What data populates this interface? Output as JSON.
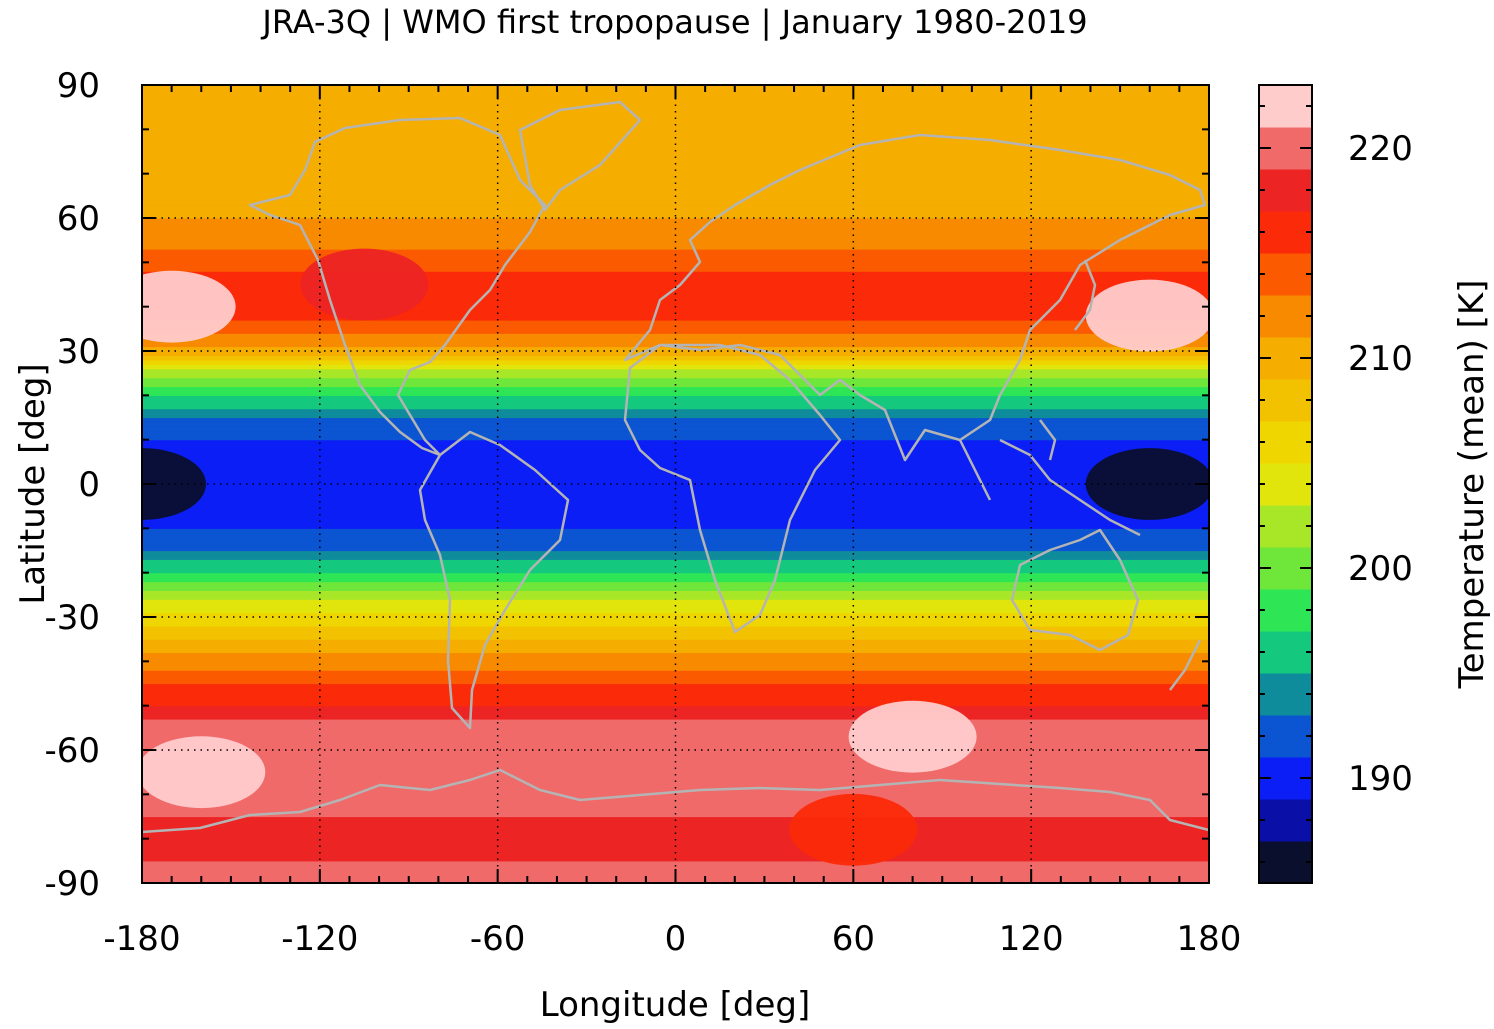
{
  "chart_data": {
    "type": "heatmap",
    "title": "JRA-3Q | WMO first tropopause | January 1980-2019",
    "xlabel": "Longitude [deg]",
    "ylabel": "Latitude [deg]",
    "colorbar_label": "Temperature (mean) [K]",
    "xlim": [
      -180,
      180
    ],
    "ylim": [
      -90,
      90
    ],
    "xticks": [
      -180,
      -120,
      -60,
      0,
      60,
      120,
      180
    ],
    "xtick_labels": [
      "-180",
      "-120",
      "-60",
      "0",
      "60",
      "120",
      "180"
    ],
    "yticks": [
      90,
      60,
      30,
      0,
      -30,
      -60,
      -90
    ],
    "ytick_labels": [
      "90",
      "60",
      "30",
      "0",
      "-30",
      "-60",
      "-90"
    ],
    "grid": true,
    "colorbar": {
      "range": [
        185,
        223
      ],
      "ticks": [
        190,
        200,
        210,
        220
      ],
      "tick_labels": [
        "190",
        "200",
        "210",
        "220"
      ],
      "levels": [
        {
          "from": 185,
          "to": 187,
          "color": "#0b0f2e"
        },
        {
          "from": 187,
          "to": 189,
          "color": "#0a0fa8"
        },
        {
          "from": 189,
          "to": 191,
          "color": "#0a1ef5"
        },
        {
          "from": 191,
          "to": 193,
          "color": "#0b55d2"
        },
        {
          "from": 193,
          "to": 195,
          "color": "#0f8c9c"
        },
        {
          "from": 195,
          "to": 197,
          "color": "#14c97e"
        },
        {
          "from": 197,
          "to": 199,
          "color": "#2ee655"
        },
        {
          "from": 199,
          "to": 201,
          "color": "#6ee63a"
        },
        {
          "from": 201,
          "to": 203,
          "color": "#a8e628"
        },
        {
          "from": 203,
          "to": 205,
          "color": "#e2e50c"
        },
        {
          "from": 205,
          "to": 207,
          "color": "#f0d600"
        },
        {
          "from": 207,
          "to": 209,
          "color": "#f2c200"
        },
        {
          "from": 209,
          "to": 211,
          "color": "#f5ad00"
        },
        {
          "from": 211,
          "to": 213,
          "color": "#f88a00"
        },
        {
          "from": 213,
          "to": 215,
          "color": "#fb5a00"
        },
        {
          "from": 215,
          "to": 217,
          "color": "#fb2a08"
        },
        {
          "from": 217,
          "to": 219,
          "color": "#ed2424"
        },
        {
          "from": 219,
          "to": 221,
          "color": "#f06a6a"
        },
        {
          "from": 221,
          "to": 223,
          "color": "#ffcccc"
        }
      ]
    },
    "zonal_mean_profile": {
      "lat": [
        -90,
        -80,
        -70,
        -60,
        -55,
        -50,
        -45,
        -40,
        -35,
        -30,
        -25,
        -20,
        -15,
        -10,
        -5,
        0,
        5,
        10,
        15,
        20,
        25,
        30,
        35,
        40,
        45,
        50,
        55,
        60,
        70,
        80,
        90
      ],
      "temperature": [
        220,
        218,
        220,
        221,
        220,
        217,
        215,
        212,
        209,
        206,
        202,
        197,
        193,
        191,
        190,
        189,
        190,
        191,
        193,
        197,
        202,
        210,
        214,
        216,
        216,
        214,
        212,
        211,
        210,
        209,
        209
      ]
    },
    "features": [
      {
        "lon": -180,
        "lat": 0,
        "temperature": 186
      },
      {
        "lon": 160,
        "lat": 0,
        "temperature": 186
      },
      {
        "lon": 160,
        "lat": 38,
        "temperature": 222
      },
      {
        "lon": -170,
        "lat": 40,
        "temperature": 221
      },
      {
        "lon": -160,
        "lat": -65,
        "temperature": 222
      },
      {
        "lon": 80,
        "lat": -57,
        "temperature": 222
      },
      {
        "lon": -105,
        "lat": 45,
        "temperature": 217
      },
      {
        "lon": 60,
        "lat": -78,
        "temperature": 216
      }
    ]
  },
  "colors": {
    "coastline": "#b4b4b4",
    "grid": "#000000",
    "frame": "#000000"
  }
}
